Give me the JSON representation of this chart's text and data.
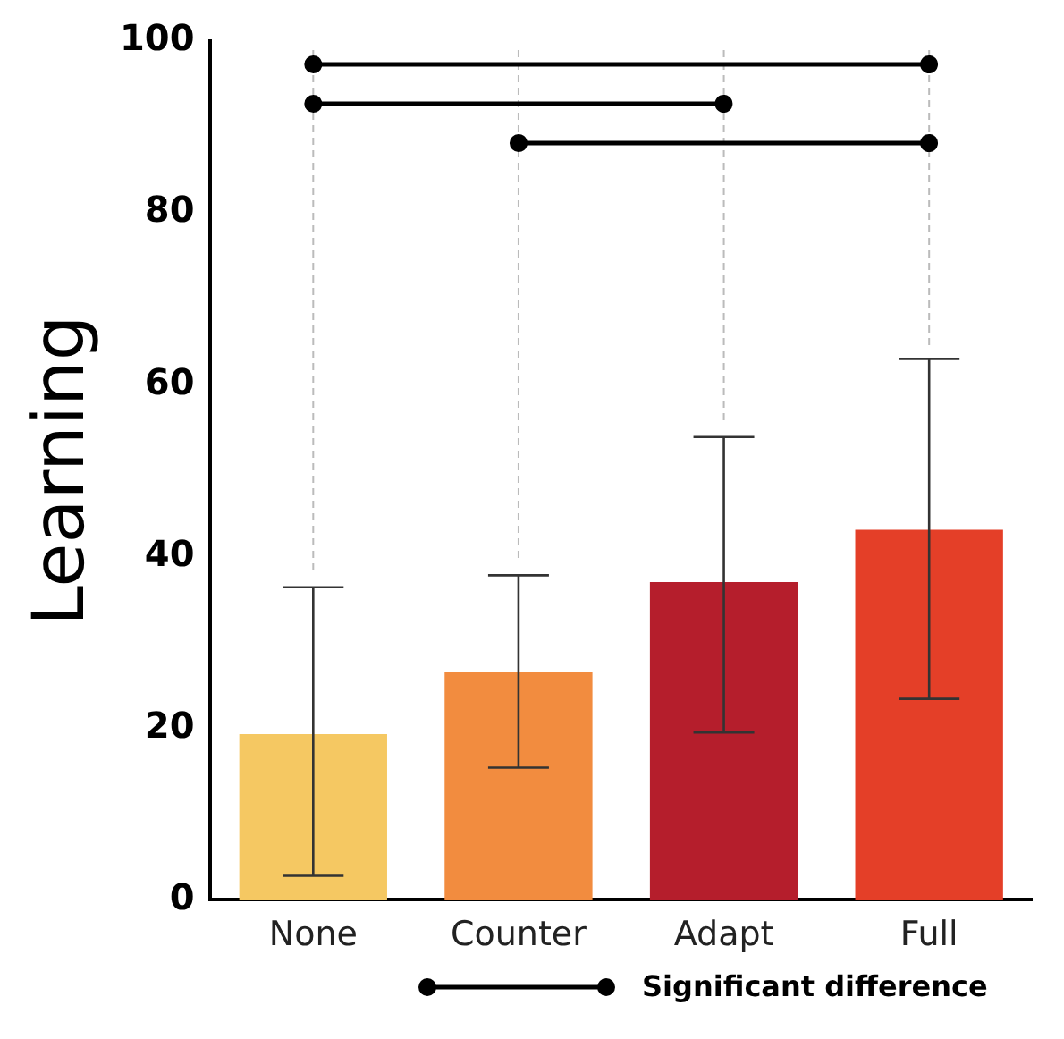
{
  "chart_data": {
    "type": "bar",
    "ylabel": "Learning",
    "categories": [
      "None",
      "Counter",
      "Adapt",
      "Full"
    ],
    "values": [
      19.3,
      26.6,
      37.0,
      43.1
    ],
    "colors": [
      "#f5c862",
      "#f28c3f",
      "#b51e2c",
      "#e43f28"
    ],
    "errors": [
      [
        2.8,
        36.4
      ],
      [
        15.4,
        37.8
      ],
      [
        19.5,
        53.9
      ],
      [
        23.4,
        63.0
      ]
    ],
    "ylim": [
      0,
      100
    ],
    "yticks": [
      0,
      20,
      40,
      60,
      80,
      100
    ],
    "grid": false,
    "legend": false,
    "annotations": [
      "Significant difference"
    ]
  }
}
